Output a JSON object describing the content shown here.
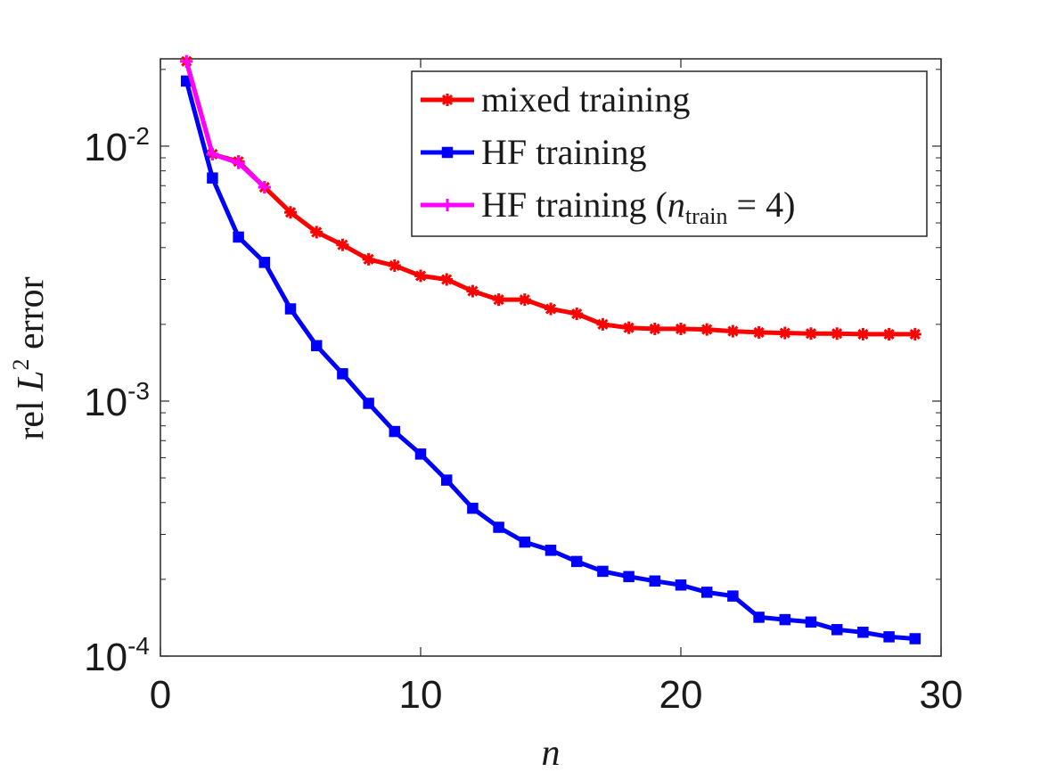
{
  "chart_data": {
    "type": "line",
    "xlabel_symbol": "n",
    "ylabel_prefix": "rel ",
    "ylabel_symbol": "L",
    "ylabel_exponent": "2",
    "ylabel_suffix": " error",
    "xlim": [
      0,
      30
    ],
    "ylim": [
      0.0001,
      0.022
    ],
    "yscale": "log",
    "grid": false,
    "legend_position": "top-right",
    "x_ticks": [
      "0",
      "10",
      "20",
      "30"
    ],
    "y_ticks": [
      {
        "base": "10",
        "exp": "-2",
        "value": 0.01
      },
      {
        "base": "10",
        "exp": "-3",
        "value": 0.001
      },
      {
        "base": "10",
        "exp": "-4",
        "value": 0.0001
      }
    ],
    "series": [
      {
        "name": "mixed training",
        "color": "#ff0000",
        "marker": "asterisk",
        "x": [
          1,
          2,
          3,
          4,
          5,
          6,
          7,
          8,
          9,
          10,
          11,
          12,
          13,
          14,
          15,
          16,
          17,
          18,
          19,
          20,
          21,
          22,
          23,
          24,
          25,
          26,
          27,
          28,
          29
        ],
        "y": [
          0.0215,
          0.0093,
          0.0087,
          0.0069,
          0.0055,
          0.0046,
          0.0041,
          0.0036,
          0.0034,
          0.0031,
          0.003,
          0.0027,
          0.0025,
          0.0025,
          0.0023,
          0.0022,
          0.002,
          0.00194,
          0.00192,
          0.00192,
          0.00191,
          0.00188,
          0.00186,
          0.00185,
          0.00184,
          0.00184,
          0.00183,
          0.00183,
          0.00183
        ]
      },
      {
        "name": "HF training",
        "color": "#0000ff",
        "marker": "square",
        "x": [
          1,
          2,
          3,
          4,
          5,
          6,
          7,
          8,
          9,
          10,
          11,
          12,
          13,
          14,
          15,
          16,
          17,
          18,
          19,
          20,
          21,
          22,
          23,
          24,
          25,
          26,
          27,
          28,
          29
        ],
        "y": [
          0.018,
          0.0075,
          0.0044,
          0.0035,
          0.0023,
          0.00165,
          0.00128,
          0.00098,
          0.00076,
          0.00062,
          0.00049,
          0.00038,
          0.00032,
          0.00028,
          0.00026,
          0.000235,
          0.000215,
          0.000205,
          0.000197,
          0.00019,
          0.000178,
          0.000172,
          0.000142,
          0.000139,
          0.000136,
          0.000127,
          0.000124,
          0.000119,
          0.000117
        ]
      },
      {
        "name_prefix": "HF training (",
        "name_var": "n",
        "name_sub": "train",
        "name_suffix": " = 4)",
        "color": "#ff00ff",
        "marker": "plus",
        "x": [
          1,
          2,
          3,
          4
        ],
        "y": [
          0.0215,
          0.0093,
          0.0086,
          0.0069
        ]
      }
    ]
  }
}
